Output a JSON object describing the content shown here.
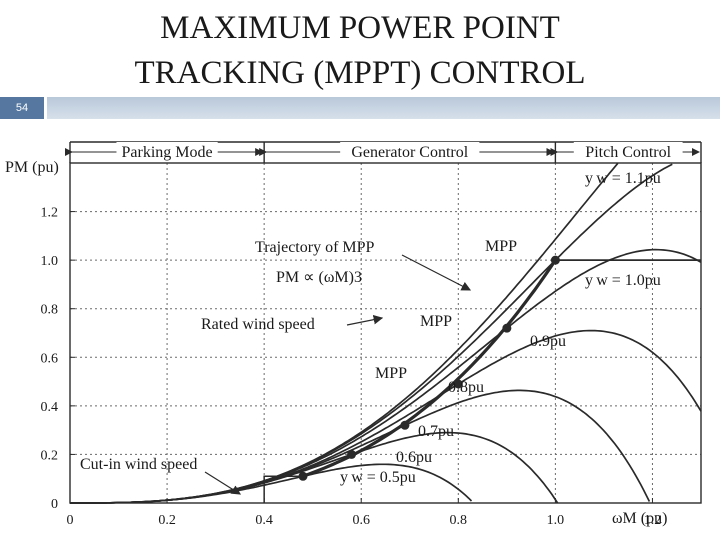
{
  "slide": {
    "title_line1": "MAXIMUM POWER POINT",
    "title_line2": "TRACKING (MPPT) CONTROL",
    "slide_number": "54"
  },
  "colors": {
    "ink": "#2a2a2a",
    "grid": "#6a6a6a",
    "accent_bar": "#5577a0",
    "header_bar": "#c4d1e0"
  },
  "chart_data": {
    "type": "line",
    "title": "",
    "xlabel": "ωM (pu)",
    "ylabel": "PM (pu)",
    "xlim": [
      0,
      1.3
    ],
    "ylim": [
      0,
      1.4
    ],
    "grid": true,
    "xticks": [
      0,
      0.2,
      0.4,
      0.6,
      0.8,
      1.0,
      1.2
    ],
    "xtick_labels": [
      "0",
      "0.2",
      "0.4",
      "0.6",
      "0.8",
      "1.0",
      "1.2"
    ],
    "yticks": [
      0,
      0.2,
      0.4,
      0.6,
      0.8,
      1.0,
      1.2
    ],
    "ytick_labels": [
      "0",
      "0.2",
      "0.4",
      "0.6",
      "0.8",
      "1.0",
      "1.2"
    ],
    "regions": [
      {
        "label": "Parking Mode",
        "from": 0,
        "to": 0.4
      },
      {
        "label": "Generator Control",
        "from": 0.4,
        "to": 1.0
      },
      {
        "label": "Pitch Control",
        "from": 1.0,
        "to": 1.3
      }
    ],
    "series": [
      {
        "name": "vw = 0.5pu",
        "wind": 0.5,
        "peak": [
          0.48,
          0.11
        ]
      },
      {
        "name": "vw = 0.6pu",
        "wind": 0.6,
        "peak": [
          0.58,
          0.2
        ]
      },
      {
        "name": "vw = 0.7pu",
        "wind": 0.7,
        "peak": [
          0.69,
          0.32
        ]
      },
      {
        "name": "vw = 0.8pu",
        "wind": 0.8,
        "peak": [
          0.8,
          0.49
        ]
      },
      {
        "name": "vw = 0.9pu",
        "wind": 0.9,
        "peak": [
          0.9,
          0.72
        ]
      },
      {
        "name": "vw = 1.0pu",
        "wind": 1.0,
        "peak": [
          1.0,
          1.0
        ]
      },
      {
        "name": "vw = 1.1pu",
        "wind": 1.1,
        "peak": [
          1.1,
          1.33
        ]
      }
    ],
    "mpp_points": [
      [
        0.48,
        0.11
      ],
      [
        0.58,
        0.2
      ],
      [
        0.69,
        0.32
      ],
      [
        0.8,
        0.49
      ],
      [
        0.9,
        0.72
      ],
      [
        1.0,
        1.0
      ]
    ],
    "rated_power_line": {
      "y": 1.0,
      "from": 1.0,
      "to": 1.3
    },
    "cut_in_box": {
      "x": 0.4,
      "y": 0.11
    },
    "labels": {
      "vw_11": "y w = 1.1pu",
      "vw_10": "y w = 1.0pu",
      "vw_09": "0.9pu",
      "vw_08": "0.8pu",
      "vw_07": "0.7pu",
      "vw_06": "0.6pu",
      "vw_05": "y w = 0.5pu",
      "mpp": "MPP",
      "trajectory": "Trajectory of MPP",
      "trajectory_formula": "PM ∝ (ωM)3",
      "rated_wind": "Rated wind speed",
      "cut_in": "Cut-in wind speed"
    }
  }
}
